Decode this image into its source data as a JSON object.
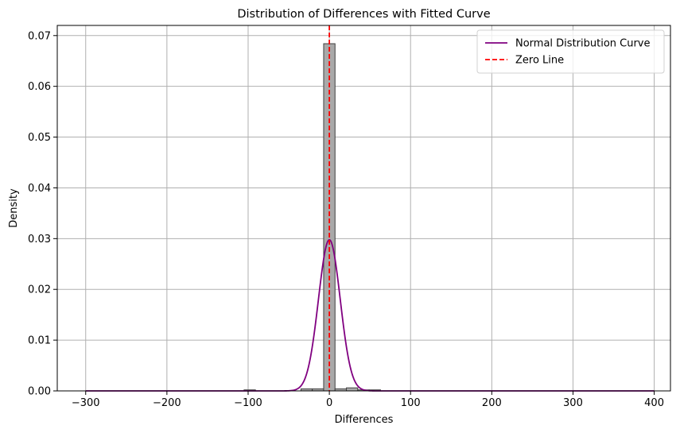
{
  "chart_data": {
    "type": "histogram",
    "title": "Distribution of Differences with Fitted Curve",
    "xlabel": "Differences",
    "ylabel": "Density",
    "xlim": [
      -335,
      420
    ],
    "ylim": [
      0,
      0.072
    ],
    "grid": true,
    "x_ticks": [
      -300,
      -200,
      -100,
      0,
      100,
      200,
      300,
      400
    ],
    "x_tick_labels": [
      "−300",
      "−200",
      "−100",
      "0",
      "100",
      "200",
      "300",
      "400"
    ],
    "y_ticks": [
      0,
      0.01,
      0.02,
      0.03,
      0.04,
      0.05,
      0.06,
      0.07
    ],
    "y_tick_labels": [
      "0.00",
      "0.01",
      "0.02",
      "0.03",
      "0.04",
      "0.05",
      "0.06",
      "0.07"
    ],
    "histogram": {
      "color": "#a9a9a9",
      "edge_color": "#404040",
      "bins": [
        {
          "x0": -105,
          "x1": -91,
          "density": 0.0002
        },
        {
          "x0": -35,
          "x1": -21,
          "density": 0.0004
        },
        {
          "x0": -21,
          "x1": -7,
          "density": 0.0004
        },
        {
          "x0": -7,
          "x1": 7,
          "density": 0.0684
        },
        {
          "x0": 7,
          "x1": 21,
          "density": 0.0004
        },
        {
          "x0": 21,
          "x1": 35,
          "density": 0.0006
        },
        {
          "x0": 35,
          "x1": 49,
          "density": 0.0002
        },
        {
          "x0": 49,
          "x1": 63,
          "density": 0.0002
        }
      ]
    },
    "series": [
      {
        "name": "Normal Distribution Curve",
        "type": "normal_pdf",
        "mean": 0,
        "std": 13.4,
        "x_range": [
          -300,
          400
        ],
        "color": "#800080"
      },
      {
        "name": "Zero Line",
        "type": "vline",
        "x": 0,
        "color": "#ff0000",
        "style": "dashed"
      }
    ],
    "legend": {
      "position": "top-right",
      "entries": [
        "Normal Distribution Curve",
        "Zero Line"
      ]
    }
  }
}
